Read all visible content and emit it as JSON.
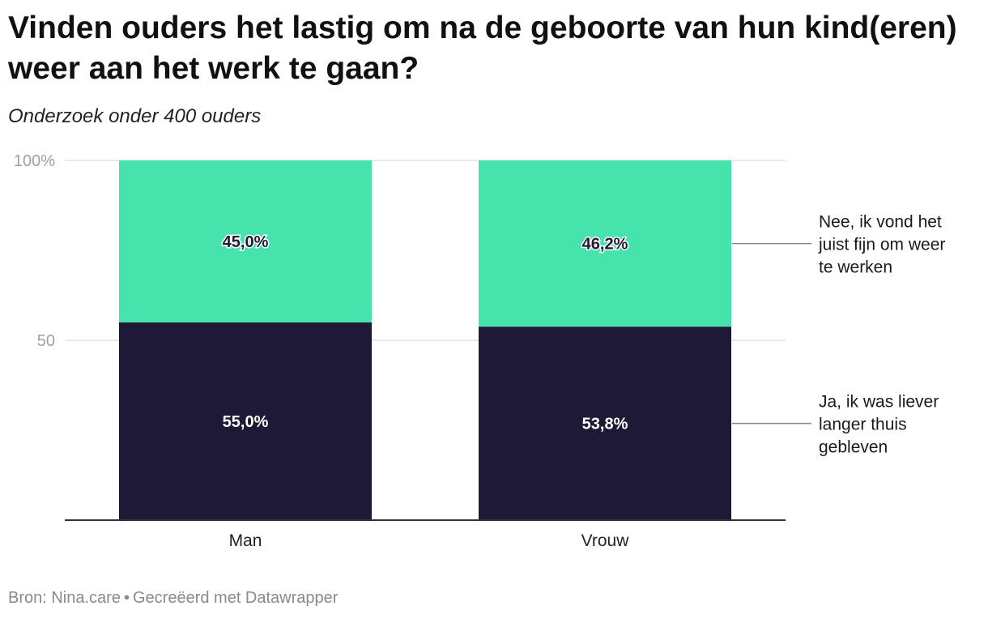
{
  "header": {
    "title": "Vinden ouders het lastig om na de geboorte van hun kind(eren) weer aan het werk te gaan?",
    "subtitle": "Onderzoek onder 400 ouders"
  },
  "footer": {
    "source": "Bron: Nina.care",
    "separator": "•",
    "credit": "Gecreëerd met Datawrapper"
  },
  "colors": {
    "ja": "#1e1934",
    "nee": "#46e3ad",
    "grid": "#e3e3e3",
    "axis": "#333333",
    "tick": "#a0a0a0",
    "leader": "#888888"
  },
  "chart_data": {
    "type": "bar",
    "stacked": true,
    "categories": [
      "Man",
      "Vrouw"
    ],
    "series": [
      {
        "name": "Ja, ik was liever langer thuis gebleven",
        "values": [
          55.0,
          53.8
        ],
        "labels": [
          "55,0%",
          "53,8%"
        ],
        "color": "#1e1934"
      },
      {
        "name": "Nee, ik vond het juist fijn om weer te werken",
        "values": [
          45.0,
          46.2
        ],
        "labels": [
          "45,0%",
          "46,2%"
        ],
        "color": "#46e3ad"
      }
    ],
    "legend_lines": [
      [
        "Ja, ik was liever",
        "langer thuis",
        "gebleven"
      ],
      [
        "Nee, ik vond het",
        "juist fijn om weer",
        "te werken"
      ]
    ],
    "ylim": [
      0,
      100
    ],
    "yticks": [
      {
        "value": 50,
        "label": "50"
      },
      {
        "value": 100,
        "label": "100%"
      }
    ],
    "grid": true,
    "legend": "right"
  }
}
